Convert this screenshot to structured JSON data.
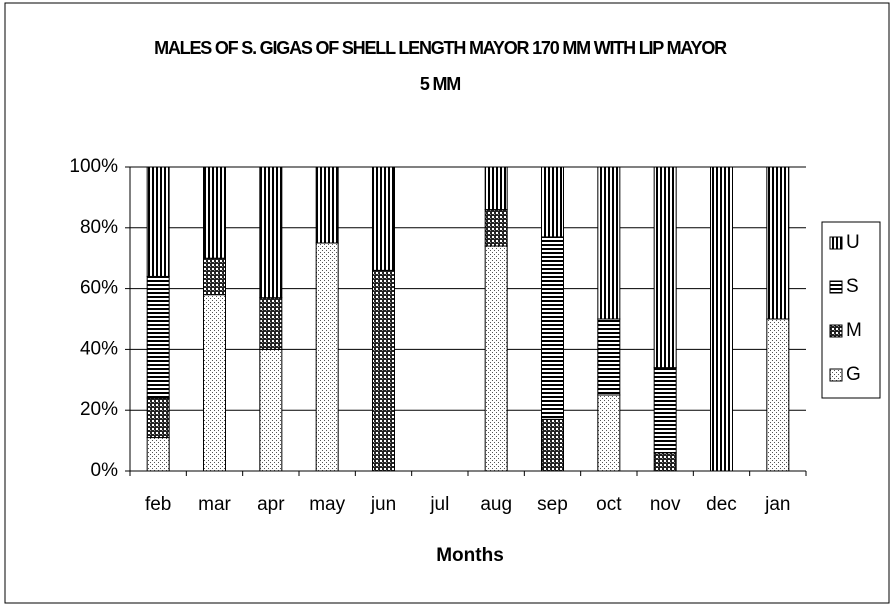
{
  "chart_data": {
    "type": "stacked_bar_100",
    "title": "MALES OF S. GIGAS OF SHELL LENGTH MAYOR 170 MM WITH LIP MAYOR 5 MM",
    "x_label": "Months",
    "categories": [
      "feb",
      "mar",
      "apr",
      "may",
      "jun",
      "jul",
      "aug",
      "sep",
      "oct",
      "nov",
      "dec",
      "jan"
    ],
    "series": [
      {
        "name": "G",
        "color": "#000000",
        "values": [
          11,
          58,
          40,
          75,
          0,
          0,
          74,
          0,
          25,
          0,
          0,
          50
        ]
      },
      {
        "name": "M",
        "color": "#000000",
        "values": [
          13,
          12,
          17,
          0,
          66,
          0,
          12,
          17,
          0,
          6,
          0,
          0
        ]
      },
      {
        "name": "S",
        "color": "#000000",
        "values": [
          40,
          0,
          0,
          0,
          0,
          0,
          0,
          60,
          25,
          28,
          0,
          0
        ]
      },
      {
        "name": "U",
        "color": "#000000",
        "values": [
          36,
          30,
          43,
          25,
          34,
          0,
          14,
          23,
          50,
          66,
          100,
          50
        ]
      }
    ],
    "ylim": [
      0,
      100
    ],
    "yticks": [
      {
        "value": 0,
        "label": "0%"
      },
      {
        "value": 20,
        "label": "20%"
      },
      {
        "value": 40,
        "label": "40%"
      },
      {
        "value": 60,
        "label": "60%"
      },
      {
        "value": 80,
        "label": "80%"
      },
      {
        "value": 100,
        "label": "100%"
      }
    ],
    "grid": true,
    "legend": "right"
  }
}
